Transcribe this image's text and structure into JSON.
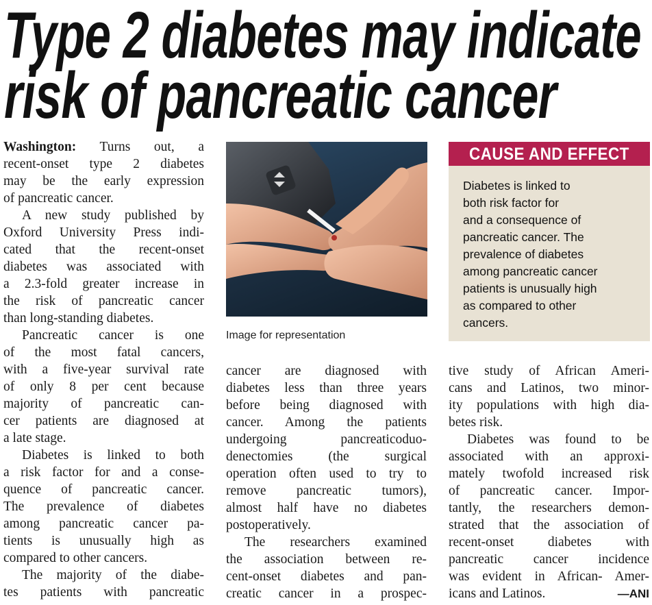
{
  "headline": {
    "line1": "Type 2 diabetes may indicate",
    "line2": "risk of pancreatic cancer"
  },
  "article": {
    "dateline": "Washington:",
    "columns": [
      [
        {
          "indent": false,
          "lines": [
            "Turns out, a",
            "recent-onset type 2 diabetes",
            "may be the early expression",
            "of pancreatic cancer."
          ],
          "end": true
        },
        {
          "indent": true,
          "lines": [
            "A new study published by",
            "Oxford University Press indi-",
            "cated that the recent-onset",
            "diabetes was associated with",
            "a 2.3-fold greater increase in",
            "the risk of pancreatic cancer",
            "than long-standing diabetes."
          ],
          "end": true
        },
        {
          "indent": true,
          "lines": [
            "Pancreatic cancer is one",
            "of the most fatal cancers,",
            "with a five-year survival rate",
            "of only 8 per cent because",
            "majority of pancreatic can-",
            "cer patients are diagnosed at",
            "a late stage."
          ],
          "end": true
        },
        {
          "indent": true,
          "lines": [
            "Diabetes is linked to both",
            "a risk factor for and a conse-",
            "quence of pancreatic cancer.",
            "The prevalence of diabetes",
            "among pancreatic cancer pa-",
            "tients is unusually high as",
            "compared to other cancers."
          ],
          "end": true
        },
        {
          "indent": true,
          "lines": [
            "The majority of the diabe-",
            "tes patients with pancreatic"
          ],
          "end": false
        }
      ],
      [
        {
          "indent": false,
          "lines": [
            "cancer are diagnosed with",
            "diabetes less than three years",
            "before being diagnosed with",
            "cancer. Among the patients",
            "undergoing pancreaticoduo-",
            "denectomies (the surgical",
            "operation often used to try to",
            "remove pancreatic tumors),",
            "almost half have no diabetes",
            "postoperatively."
          ],
          "end": true
        },
        {
          "indent": true,
          "lines": [
            "The researchers examined",
            "the association between re-",
            "cent-onset diabetes and pan-",
            "creatic cancer in a prospec-"
          ],
          "end": false
        }
      ],
      [
        {
          "indent": false,
          "lines": [
            "tive study of African Ameri-",
            "cans and Latinos, two minor-",
            "ity populations with high dia-",
            "betes risk."
          ],
          "end": true
        },
        {
          "indent": true,
          "lines": [
            "Diabetes was found to be",
            "associated with an approxi-",
            "mately twofold increased risk",
            "of pancreatic cancer. Impor-",
            "tantly, the researchers demon-",
            "strated that the association of",
            "recent-onset diabetes with",
            "pancreatic cancer incidence",
            "was evident in African- Amer-",
            "icans and Latinos."
          ],
          "end": true
        }
      ]
    ],
    "signature": "—ANI"
  },
  "image": {
    "caption": "Image for representation"
  },
  "sidebar": {
    "title": "CAUSE AND EFFECT",
    "lines": [
      "Diabetes is linked to",
      "both risk factor for",
      "and a consequence of",
      "pancreatic cancer. The",
      "prevalence of diabetes",
      "among pancreatic cancer",
      "patients is unusually high",
      "as compared to other",
      "cancers."
    ],
    "colors": {
      "header": "#b4204f",
      "background": "#e8e2d4"
    }
  }
}
